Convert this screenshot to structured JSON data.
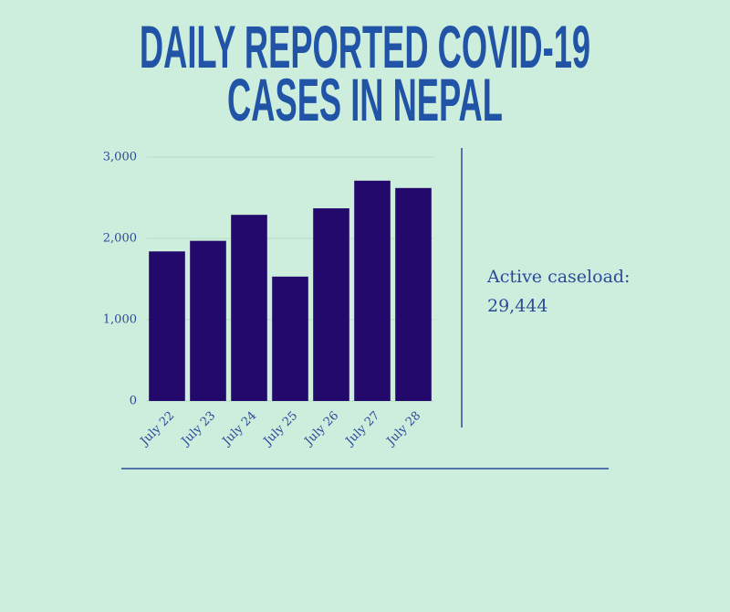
{
  "chart_data": {
    "type": "bar",
    "title": "DAILY REPORTED COVID-19 CASES IN NEPAL",
    "categories": [
      "July 22",
      "July 23",
      "July 24",
      "July 25",
      "July 26",
      "July 27",
      "July 28"
    ],
    "values": [
      1840,
      1970,
      2290,
      1530,
      2370,
      2710,
      2620
    ],
    "color": "#22096b",
    "ylim": [
      0,
      3000
    ],
    "yticks": [
      0,
      {
        "value": 1000,
        "label": "1,000"
      },
      {
        "value": 2000,
        "label": "2,000"
      },
      {
        "value": 3000,
        "label": "3,000"
      }
    ],
    "grid": true,
    "annotations": [
      "Active caseload:",
      "29,444"
    ]
  }
}
